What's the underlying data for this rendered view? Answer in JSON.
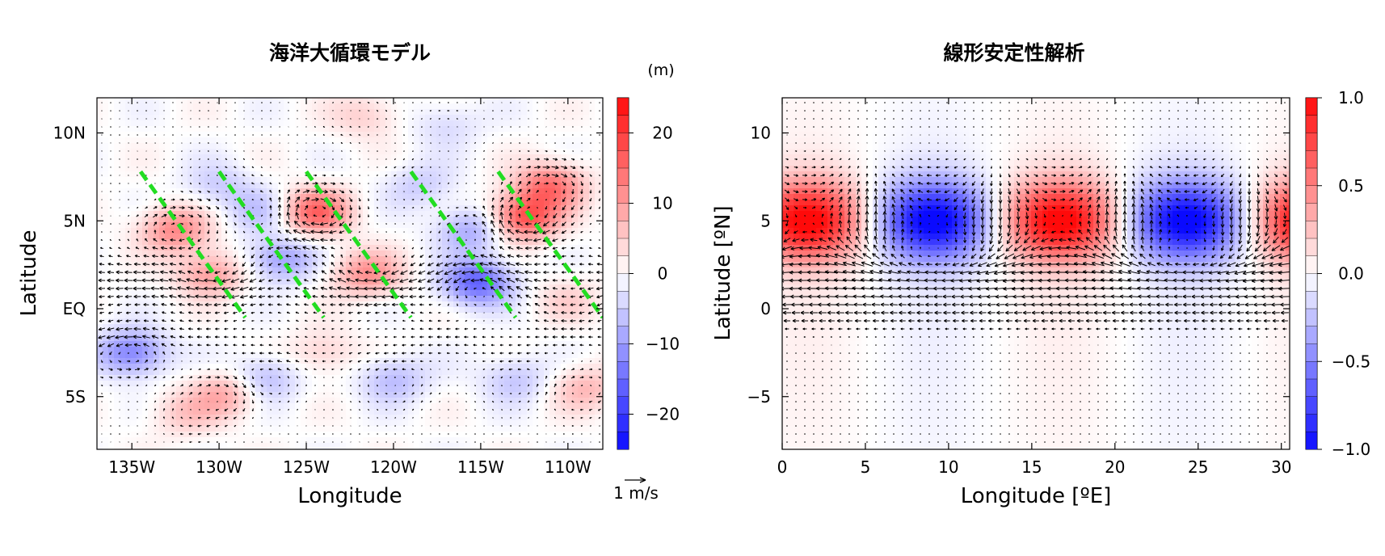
{
  "chart_data": [
    {
      "type": "heatmap",
      "title": "海洋大循環モデル",
      "xlabel": "Longitude",
      "ylabel": "Latitude",
      "xlim": [
        -137,
        -108
      ],
      "ylim": [
        -8,
        12
      ],
      "x_ticks": [
        {
          "value": -135,
          "label": "135W"
        },
        {
          "value": -130,
          "label": "130W"
        },
        {
          "value": -125,
          "label": "125W"
        },
        {
          "value": -120,
          "label": "120W"
        },
        {
          "value": -115,
          "label": "115W"
        },
        {
          "value": -110,
          "label": "110W"
        }
      ],
      "y_ticks": [
        {
          "value": 10,
          "label": "10N"
        },
        {
          "value": 5,
          "label": "5N"
        },
        {
          "value": 0,
          "label": "EQ"
        },
        {
          "value": -5,
          "label": "5S"
        }
      ],
      "colorbar": {
        "unit": "(m)",
        "range": [
          -25,
          25
        ],
        "ticks": [
          {
            "value": 20,
            "label": "20"
          },
          {
            "value": 10,
            "label": "10"
          },
          {
            "value": 0,
            "label": "0"
          },
          {
            "value": -10,
            "label": "−10"
          },
          {
            "value": -20,
            "label": "−20"
          }
        ]
      },
      "vector_reference": {
        "value": 1,
        "label": "1 m/s"
      },
      "anomaly_centers": [
        {
          "lon": -132.5,
          "lat": 4.5,
          "value": 12
        },
        {
          "lon": -130.5,
          "lat": 2.0,
          "value": 10
        },
        {
          "lon": -124.5,
          "lat": 5.5,
          "value": 16
        },
        {
          "lon": -121.5,
          "lat": 2.0,
          "value": 11
        },
        {
          "lon": -112.5,
          "lat": 5.2,
          "value": 18
        },
        {
          "lon": -111.0,
          "lat": 7.0,
          "value": 14
        },
        {
          "lon": -127.5,
          "lat": 5.5,
          "value": -6
        },
        {
          "lon": -126.5,
          "lat": 2.8,
          "value": -10
        },
        {
          "lon": -115.2,
          "lat": 1.5,
          "value": -16
        },
        {
          "lon": -115.5,
          "lat": 4.5,
          "value": -9
        },
        {
          "lon": -130.0,
          "lat": 7.0,
          "value": -5
        },
        {
          "lon": -135.0,
          "lat": -2.5,
          "value": -13
        },
        {
          "lon": -127.5,
          "lat": -4.0,
          "value": -8
        },
        {
          "lon": -120.0,
          "lat": -4.0,
          "value": -7
        },
        {
          "lon": -113.0,
          "lat": -4.0,
          "value": -6
        },
        {
          "lon": -124.0,
          "lat": -2.5,
          "value": 5
        },
        {
          "lon": -129.5,
          "lat": -4.8,
          "value": 9
        },
        {
          "lon": -132.0,
          "lat": -6.0,
          "value": 5
        },
        {
          "lon": -109.0,
          "lat": -4.5,
          "value": 7
        },
        {
          "lon": -110.0,
          "lat": 0.5,
          "value": 4
        },
        {
          "lon": -121.5,
          "lat": 11.0,
          "value": 5
        },
        {
          "lon": -117.0,
          "lat": 10.5,
          "value": -4
        },
        {
          "lon": -118.5,
          "lat": 7.0,
          "value": -5
        }
      ],
      "phase_lines": [
        {
          "from": [
            -134.5,
            7.8
          ],
          "to": [
            -128.5,
            -0.5
          ]
        },
        {
          "from": [
            -130.0,
            7.8
          ],
          "to": [
            -124.0,
            -0.5
          ]
        },
        {
          "from": [
            -125.0,
            7.8
          ],
          "to": [
            -119.0,
            -0.5
          ]
        },
        {
          "from": [
            -119.0,
            7.8
          ],
          "to": [
            -113.0,
            -0.5
          ]
        },
        {
          "from": [
            -114.0,
            7.8
          ],
          "to": [
            -108.0,
            -0.5
          ]
        }
      ],
      "phase_line_color": "#22dd22"
    },
    {
      "type": "heatmap",
      "title": "線形安定性解析",
      "xlabel": "Longitude [ºE]",
      "ylabel": "Latitude [ºN]",
      "xlim": [
        0,
        30.5
      ],
      "ylim": [
        -8,
        12
      ],
      "x_ticks": [
        {
          "value": 0,
          "label": "0"
        },
        {
          "value": 5,
          "label": "5"
        },
        {
          "value": 10,
          "label": "10"
        },
        {
          "value": 15,
          "label": "15"
        },
        {
          "value": 20,
          "label": "20"
        },
        {
          "value": 25,
          "label": "25"
        },
        {
          "value": 30,
          "label": "30"
        }
      ],
      "y_ticks": [
        {
          "value": 10,
          "label": "10"
        },
        {
          "value": 5,
          "label": "5"
        },
        {
          "value": 0,
          "label": "0"
        },
        {
          "value": -5,
          "label": "−5"
        }
      ],
      "colorbar": {
        "range": [
          -1,
          1
        ],
        "ticks": [
          {
            "value": 1,
            "label": "1.0"
          },
          {
            "value": 0.5,
            "label": "0.5"
          },
          {
            "value": 0,
            "label": "0.0"
          },
          {
            "value": -0.5,
            "label": "−0.5"
          },
          {
            "value": -1,
            "label": "−1.0"
          }
        ]
      },
      "wavelength_deg": 15.2,
      "amplitude_max_lon": 1.5,
      "amplitude_max_lat": 5
    }
  ],
  "colors": {
    "positive": "#ff0000",
    "negative": "#0000ff",
    "neutral": "#ffffff",
    "vector": "#000000",
    "phase_line": "#22dd22"
  }
}
